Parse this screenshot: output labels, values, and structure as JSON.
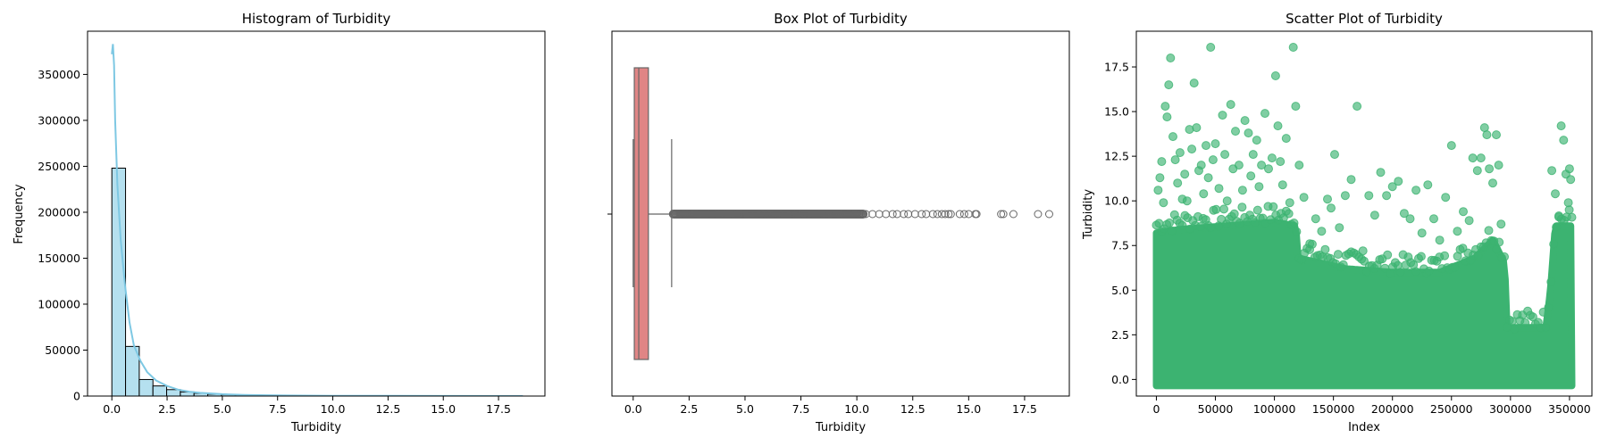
{
  "chart_data": [
    {
      "type": "bar",
      "title": "Histogram of Turbidity",
      "xlabel": "Turbidity",
      "ylabel": "Frequency",
      "xlim": [
        -1.1,
        19.6
      ],
      "ylim": [
        0,
        397000
      ],
      "xticks": [
        "0.0",
        "2.5",
        "5.0",
        "7.5",
        "10.0",
        "12.5",
        "15.0",
        "17.5"
      ],
      "yticks": [
        "0",
        "50000",
        "100000",
        "150000",
        "200000",
        "250000",
        "300000",
        "350000"
      ],
      "bin_width": 0.62,
      "bins": [
        [
          0.0,
          248000
        ],
        [
          0.62,
          54000
        ],
        [
          1.24,
          18000
        ],
        [
          1.86,
          11000
        ],
        [
          2.48,
          7000
        ],
        [
          3.1,
          4500
        ],
        [
          3.72,
          3000
        ],
        [
          4.34,
          2000
        ],
        [
          4.96,
          1400
        ],
        [
          5.58,
          1000
        ],
        [
          6.2,
          700
        ],
        [
          6.82,
          500
        ],
        [
          7.44,
          350
        ],
        [
          8.06,
          250
        ],
        [
          8.68,
          180
        ],
        [
          9.3,
          120
        ],
        [
          9.92,
          90
        ],
        [
          10.54,
          60
        ],
        [
          11.16,
          40
        ],
        [
          11.78,
          30
        ],
        [
          12.4,
          20
        ],
        [
          13.02,
          15
        ],
        [
          13.64,
          10
        ],
        [
          14.26,
          6
        ],
        [
          14.88,
          4
        ],
        [
          15.5,
          3
        ],
        [
          16.12,
          2
        ],
        [
          16.74,
          1
        ],
        [
          17.36,
          1
        ],
        [
          17.98,
          1
        ]
      ],
      "kde": {
        "x": [
          0,
          0.05,
          0.1,
          0.15,
          0.25,
          0.4,
          0.6,
          0.8,
          1.0,
          1.3,
          1.6,
          2.0,
          2.5,
          3.0,
          3.5,
          4.0,
          5.0,
          6.0,
          7.0,
          8.0,
          10.0,
          12.5,
          15.0,
          18.6
        ],
        "y": [
          372000,
          383000,
          360000,
          300000,
          230000,
          170000,
          120000,
          80000,
          55000,
          38000,
          26000,
          17000,
          11000,
          7000,
          4800,
          3500,
          2000,
          1300,
          900,
          600,
          300,
          150,
          80,
          0
        ]
      },
      "colors": {
        "bar": "#b5e0ef",
        "kde": "#7ec8e3"
      }
    },
    {
      "type": "box",
      "title": "Box Plot of Turbidity",
      "xlabel": "Turbidity",
      "xlim": [
        -0.95,
        19.5
      ],
      "xticks": [
        "0.0",
        "2.5",
        "5.0",
        "7.5",
        "10.0",
        "12.5",
        "15.0",
        "17.5"
      ],
      "whislo": 0.0,
      "q1": 0.05,
      "median": 0.25,
      "q3": 0.68,
      "whishi": 1.72,
      "flier_range": [
        1.78,
        18.6
      ],
      "sparse_fliers": [
        10.4,
        10.7,
        11.0,
        11.3,
        11.6,
        11.8,
        12.1,
        12.3,
        12.6,
        12.9,
        13.1,
        13.4,
        13.6,
        13.8,
        13.95,
        14.1,
        14.2,
        14.6,
        14.8,
        15.0,
        15.3,
        15.35,
        16.45,
        16.55,
        17.0,
        18.1,
        18.6
      ],
      "colors": {
        "box": "#e08585",
        "line": "#666666"
      }
    },
    {
      "type": "scatter",
      "title": "Scatter Plot of Turbidity",
      "xlabel": "Index",
      "ylabel": "Turbidity",
      "xlim": [
        -17000,
        369000
      ],
      "ylim": [
        -0.93,
        19.5
      ],
      "xticks": [
        "0",
        "50000",
        "100000",
        "150000",
        "200000",
        "250000",
        "300000",
        "350000"
      ],
      "yticks": [
        "0.0",
        "2.5",
        "5.0",
        "7.5",
        "10.0",
        "12.5",
        "15.0",
        "17.5"
      ],
      "dense_envelope": [
        [
          0,
          8.2
        ],
        [
          20000,
          8.4
        ],
        [
          60000,
          8.6
        ],
        [
          100000,
          8.8
        ],
        [
          118000,
          8.6
        ],
        [
          120000,
          6.8
        ],
        [
          160000,
          6.2
        ],
        [
          200000,
          6.0
        ],
        [
          240000,
          6.0
        ],
        [
          270000,
          6.8
        ],
        [
          285000,
          7.8
        ],
        [
          295000,
          6.5
        ],
        [
          297000,
          2.9
        ],
        [
          330000,
          2.9
        ],
        [
          334000,
          5.0
        ],
        [
          338000,
          8.6
        ],
        [
          352000,
          8.6
        ]
      ],
      "outliers": [
        [
          1500,
          10.6
        ],
        [
          3000,
          11.3
        ],
        [
          4500,
          12.2
        ],
        [
          6000,
          9.9
        ],
        [
          7500,
          15.3
        ],
        [
          9000,
          14.7
        ],
        [
          10500,
          16.5
        ],
        [
          12000,
          18.0
        ],
        [
          14000,
          13.6
        ],
        [
          16000,
          12.3
        ],
        [
          18000,
          11.0
        ],
        [
          20000,
          12.7
        ],
        [
          22000,
          10.1
        ],
        [
          24000,
          11.5
        ],
        [
          26000,
          10.0
        ],
        [
          28000,
          14.0
        ],
        [
          30000,
          12.9
        ],
        [
          32000,
          16.6
        ],
        [
          34000,
          14.1
        ],
        [
          36000,
          11.7
        ],
        [
          38000,
          12.0
        ],
        [
          40000,
          10.4
        ],
        [
          42000,
          13.1
        ],
        [
          44000,
          11.3
        ],
        [
          46000,
          18.6
        ],
        [
          48000,
          12.3
        ],
        [
          50000,
          13.2
        ],
        [
          53000,
          10.7
        ],
        [
          56000,
          14.8
        ],
        [
          58000,
          12.6
        ],
        [
          60000,
          10.0
        ],
        [
          63000,
          15.4
        ],
        [
          65000,
          11.8
        ],
        [
          67000,
          13.9
        ],
        [
          70000,
          12.0
        ],
        [
          73000,
          10.6
        ],
        [
          75000,
          14.5
        ],
        [
          78000,
          13.8
        ],
        [
          80000,
          11.4
        ],
        [
          82000,
          12.6
        ],
        [
          85000,
          13.4
        ],
        [
          87000,
          10.8
        ],
        [
          89000,
          12.0
        ],
        [
          92000,
          14.9
        ],
        [
          95000,
          11.8
        ],
        [
          98000,
          12.4
        ],
        [
          101000,
          17.0
        ],
        [
          103000,
          14.2
        ],
        [
          105000,
          12.2
        ],
        [
          107000,
          10.9
        ],
        [
          110000,
          13.5
        ],
        [
          113000,
          9.9
        ],
        [
          116000,
          18.6
        ],
        [
          118000,
          15.3
        ],
        [
          121000,
          12.0
        ],
        [
          125000,
          10.2
        ],
        [
          130000,
          7.6
        ],
        [
          135000,
          9.0
        ],
        [
          140000,
          8.3
        ],
        [
          145000,
          10.1
        ],
        [
          148000,
          9.6
        ],
        [
          151000,
          12.6
        ],
        [
          155000,
          8.5
        ],
        [
          160000,
          10.3
        ],
        [
          165000,
          11.2
        ],
        [
          170000,
          15.3
        ],
        [
          175000,
          7.2
        ],
        [
          180000,
          10.3
        ],
        [
          185000,
          9.2
        ],
        [
          190000,
          11.6
        ],
        [
          195000,
          10.3
        ],
        [
          200000,
          10.8
        ],
        [
          205000,
          11.1
        ],
        [
          210000,
          9.3
        ],
        [
          215000,
          9.0
        ],
        [
          220000,
          10.6
        ],
        [
          225000,
          8.2
        ],
        [
          230000,
          10.9
        ],
        [
          235000,
          9.0
        ],
        [
          240000,
          7.8
        ],
        [
          245000,
          10.2
        ],
        [
          250000,
          13.1
        ],
        [
          255000,
          8.3
        ],
        [
          260000,
          9.4
        ],
        [
          265000,
          8.9
        ],
        [
          268000,
          12.4
        ],
        [
          272000,
          11.7
        ],
        [
          275000,
          12.4
        ],
        [
          278000,
          14.1
        ],
        [
          280000,
          13.7
        ],
        [
          282000,
          11.8
        ],
        [
          285000,
          11.0
        ],
        [
          288000,
          13.7
        ],
        [
          290000,
          12.0
        ],
        [
          292000,
          8.7
        ],
        [
          335000,
          11.7
        ],
        [
          338000,
          10.4
        ],
        [
          341000,
          9.1
        ],
        [
          343000,
          14.2
        ],
        [
          345000,
          13.4
        ],
        [
          347000,
          11.5
        ],
        [
          349000,
          9.9
        ],
        [
          350000,
          11.8
        ],
        [
          351000,
          11.2
        ]
      ],
      "colors": {
        "point": "#3cb371"
      }
    }
  ]
}
